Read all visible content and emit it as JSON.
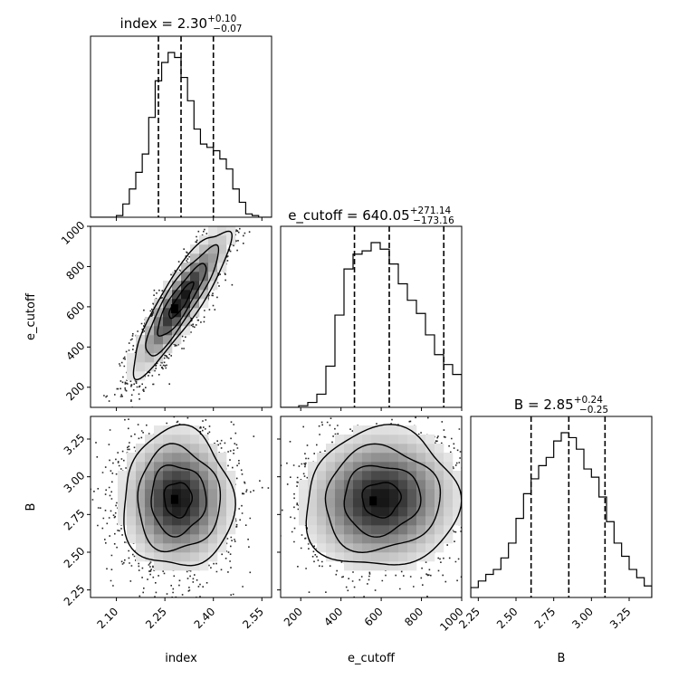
{
  "chart_data": {
    "type": "corner",
    "parameters": [
      {
        "name": "index",
        "label": "index",
        "median": "2.30",
        "plus": "+0.10",
        "minus": "−0.07",
        "title_prefix": "index = ",
        "range": [
          2.02,
          2.58
        ],
        "ticks": [
          2.1,
          2.25,
          2.4,
          2.55
        ],
        "tick_labels": [
          "2.10",
          "2.25",
          "2.40",
          "2.55"
        ],
        "quantiles": [
          2.23,
          2.3,
          2.4
        ],
        "hist": {
          "bins": [
            2.02,
            2.04,
            2.06,
            2.08,
            2.1,
            2.12,
            2.14,
            2.16,
            2.18,
            2.2,
            2.22,
            2.24,
            2.26,
            2.28,
            2.3,
            2.32,
            2.34,
            2.36,
            2.38,
            2.4,
            2.42,
            2.44,
            2.46,
            2.48,
            2.5,
            2.52,
            2.54,
            2.56,
            2.58
          ],
          "counts": [
            0,
            0,
            0,
            0,
            0.01,
            0.08,
            0.17,
            0.27,
            0.38,
            0.6,
            0.82,
            0.93,
            0.99,
            0.96,
            0.84,
            0.7,
            0.53,
            0.44,
            0.42,
            0.4,
            0.35,
            0.29,
            0.17,
            0.09,
            0.02,
            0.01,
            0,
            0
          ]
        }
      },
      {
        "name": "e_cutoff",
        "label": "e_cutoff",
        "median": "640.05",
        "plus": "+271.14",
        "minus": "−173.16",
        "title_prefix": "e_cutoff = ",
        "range": [
          100,
          1000
        ],
        "ticks": [
          200,
          400,
          600,
          800,
          1000
        ],
        "tick_labels": [
          "200",
          "400",
          "600",
          "800",
          "1000"
        ],
        "quantiles": [
          467,
          640,
          911
        ],
        "hist": {
          "bins": [
            100,
            145,
            190,
            235,
            280,
            325,
            370,
            415,
            460,
            505,
            550,
            595,
            640,
            685,
            730,
            775,
            820,
            865,
            910,
            955,
            1000
          ],
          "counts": [
            0,
            0,
            0.01,
            0.03,
            0.08,
            0.25,
            0.56,
            0.84,
            0.93,
            0.95,
            1.0,
            0.96,
            0.87,
            0.75,
            0.65,
            0.57,
            0.44,
            0.32,
            0.26,
            0.2
          ]
        }
      },
      {
        "name": "B",
        "label": "B",
        "median": "2.85",
        "plus": "+0.24",
        "minus": "−0.25",
        "title_prefix": "B = ",
        "range": [
          2.2,
          3.4
        ],
        "ticks": [
          2.25,
          2.5,
          2.75,
          3.0,
          3.25
        ],
        "tick_labels": [
          "2.25",
          "2.50",
          "2.75",
          "3.00",
          "3.25"
        ],
        "quantiles": [
          2.6,
          2.85,
          3.09
        ],
        "hist": {
          "bins": [
            2.2,
            2.25,
            2.3,
            2.35,
            2.4,
            2.45,
            2.5,
            2.55,
            2.6,
            2.65,
            2.7,
            2.75,
            2.8,
            2.85,
            2.9,
            2.95,
            3.0,
            3.05,
            3.1,
            3.15,
            3.2,
            3.25,
            3.3,
            3.35,
            3.4
          ],
          "counts": [
            0.06,
            0.1,
            0.14,
            0.17,
            0.24,
            0.33,
            0.48,
            0.63,
            0.72,
            0.8,
            0.85,
            0.95,
            1.0,
            0.97,
            0.9,
            0.78,
            0.73,
            0.61,
            0.46,
            0.33,
            0.25,
            0.17,
            0.12,
            0.07
          ]
        }
      }
    ],
    "pairs": [
      {
        "x": "index",
        "y": "e_cutoff",
        "mean": [
          2.3,
          630
        ],
        "sd": [
          0.075,
          180
        ],
        "rho": 0.88,
        "peak": [
          2.28,
          590
        ]
      },
      {
        "x": "index",
        "y": "B",
        "mean": [
          2.29,
          2.85
        ],
        "sd": [
          0.085,
          0.23
        ],
        "rho": 0.0,
        "peak": [
          2.28,
          2.85
        ]
      },
      {
        "x": "e_cutoff",
        "y": "B",
        "mean": [
          600,
          2.85
        ],
        "sd": [
          190,
          0.23
        ],
        "rho": 0.05,
        "peak": [
          560,
          2.84
        ]
      }
    ],
    "xlabel_bottom": [
      "index",
      "e_cutoff",
      "B"
    ],
    "ylabel_left": [
      "",
      "e_cutoff",
      "B"
    ]
  }
}
